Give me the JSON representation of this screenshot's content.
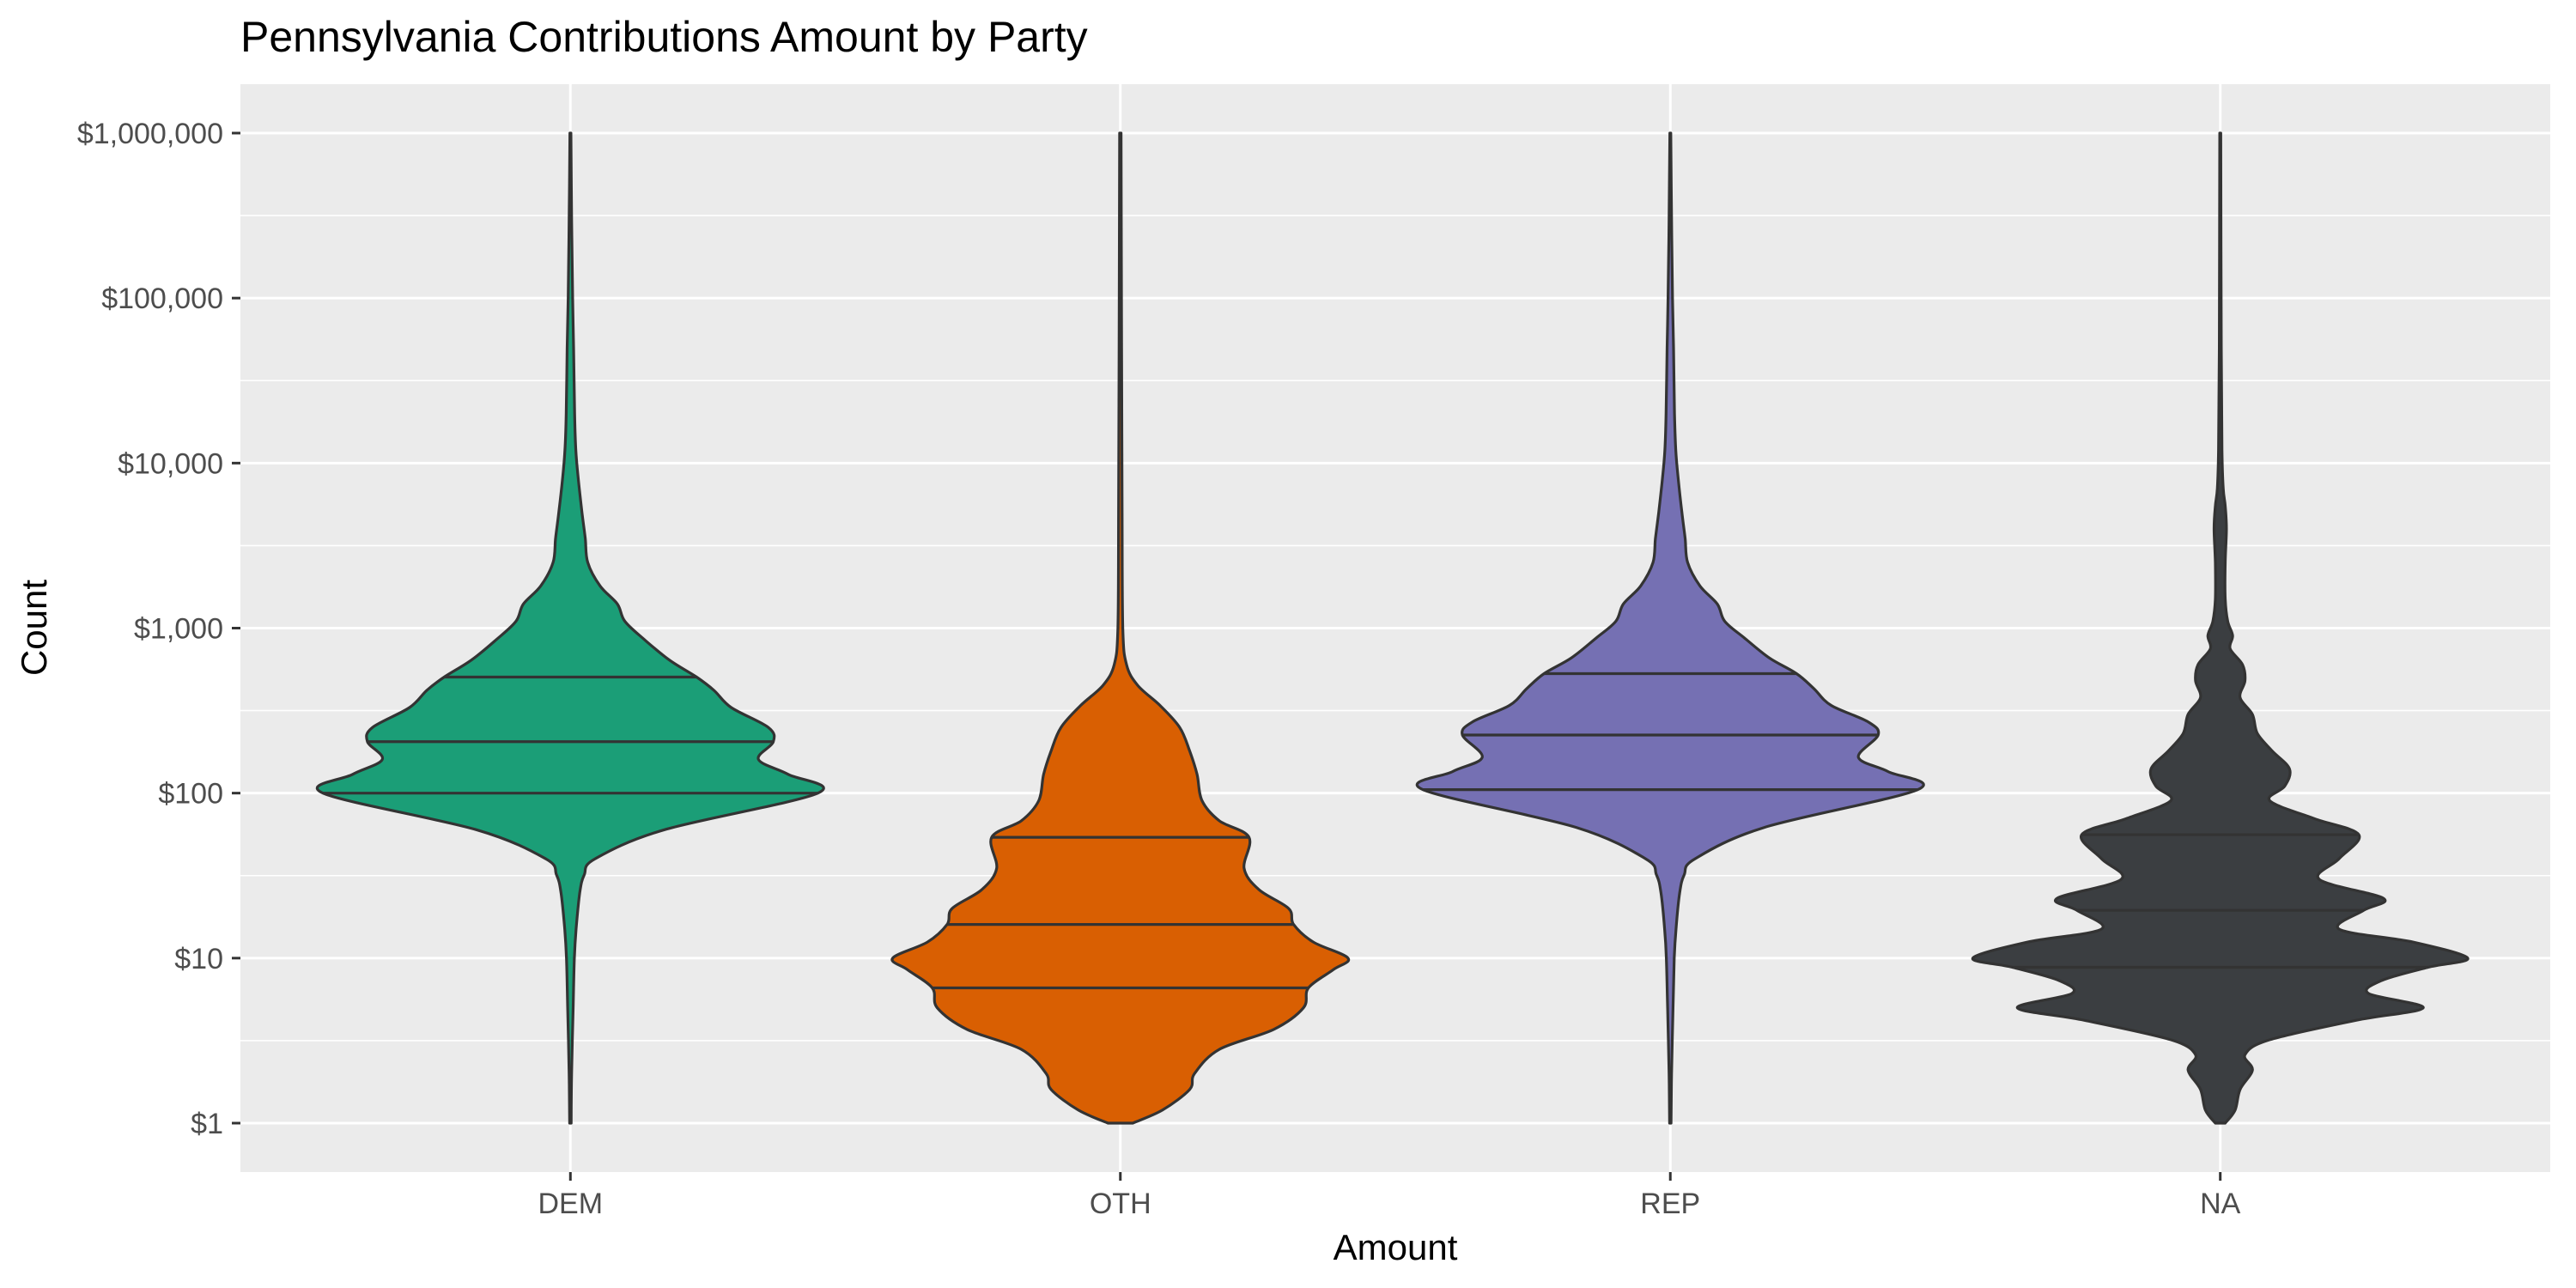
{
  "chart_data": {
    "type": "violin",
    "title": "Pennsylvania Contributions Amount by Party",
    "xlabel": "Amount",
    "ylabel": "Count",
    "y_scale": "log10",
    "ylim": [
      1,
      1000000
    ],
    "y_ticks": [
      1,
      10,
      100,
      1000,
      10000,
      100000,
      1000000
    ],
    "y_tick_labels": [
      "$1",
      "$10",
      "$100",
      "$1,000",
      "$10,000",
      "$100,000",
      "$1,000,000"
    ],
    "categories": [
      "DEM",
      "OTH",
      "REP",
      "NA"
    ],
    "grid": true,
    "legend": "none",
    "series": [
      {
        "category": "DEM",
        "color": "#1b9e77",
        "min": 1,
        "max": 1000000,
        "quantiles": [
          100,
          205,
          505
        ],
        "density": [
          [
            1,
            0.003
          ],
          [
            2,
            0.005
          ],
          [
            5,
            0.011
          ],
          [
            10,
            0.016
          ],
          [
            15,
            0.023
          ],
          [
            25,
            0.038
          ],
          [
            32,
            0.056
          ],
          [
            40,
            0.1
          ],
          [
            60,
            0.38
          ],
          [
            100,
            1.0
          ],
          [
            130,
            0.88
          ],
          [
            160,
            0.76
          ],
          [
            205,
            0.82
          ],
          [
            250,
            0.8
          ],
          [
            330,
            0.65
          ],
          [
            420,
            0.58
          ],
          [
            505,
            0.51
          ],
          [
            640,
            0.4
          ],
          [
            850,
            0.3
          ],
          [
            1100,
            0.22
          ],
          [
            1400,
            0.19
          ],
          [
            1800,
            0.12
          ],
          [
            2500,
            0.07
          ],
          [
            3500,
            0.06
          ],
          [
            5000,
            0.047
          ],
          [
            8000,
            0.032
          ],
          [
            12000,
            0.022
          ],
          [
            20000,
            0.017
          ],
          [
            50000,
            0.013
          ],
          [
            100000,
            0.009
          ],
          [
            300000,
            0.005
          ],
          [
            1000000,
            0.002
          ]
        ]
      },
      {
        "category": "OTH",
        "color": "#d95f02",
        "min": 1,
        "max": 1000000,
        "quantiles": [
          6.6,
          16,
          54
        ],
        "density": [
          [
            1,
            0.05
          ],
          [
            1.2,
            0.17
          ],
          [
            1.6,
            0.28
          ],
          [
            2.0,
            0.3
          ],
          [
            2.8,
            0.4
          ],
          [
            3.7,
            0.62
          ],
          [
            5,
            0.74
          ],
          [
            6.6,
            0.76
          ],
          [
            8.5,
            0.86
          ],
          [
            10,
            0.92
          ],
          [
            12.5,
            0.78
          ],
          [
            16,
            0.7
          ],
          [
            20,
            0.68
          ],
          [
            26,
            0.56
          ],
          [
            35,
            0.5
          ],
          [
            54,
            0.52
          ],
          [
            68,
            0.4
          ],
          [
            90,
            0.33
          ],
          [
            130,
            0.31
          ],
          [
            180,
            0.28
          ],
          [
            250,
            0.24
          ],
          [
            340,
            0.16
          ],
          [
            450,
            0.07
          ],
          [
            600,
            0.025
          ],
          [
            1000,
            0.01
          ],
          [
            5000,
            0.007
          ],
          [
            50000,
            0.005
          ],
          [
            1000000,
            0.003
          ]
        ]
      },
      {
        "category": "REP",
        "color": "#7570b3",
        "min": 1,
        "max": 1000000,
        "quantiles": [
          105,
          225,
          530
        ],
        "density": [
          [
            1,
            0.003
          ],
          [
            2,
            0.005
          ],
          [
            5,
            0.011
          ],
          [
            10,
            0.016
          ],
          [
            15,
            0.023
          ],
          [
            25,
            0.038
          ],
          [
            32,
            0.056
          ],
          [
            40,
            0.1
          ],
          [
            62,
            0.38
          ],
          [
            105,
            1.0
          ],
          [
            135,
            0.88
          ],
          [
            165,
            0.76
          ],
          [
            225,
            0.84
          ],
          [
            270,
            0.8
          ],
          [
            340,
            0.65
          ],
          [
            430,
            0.58
          ],
          [
            530,
            0.51
          ],
          [
            660,
            0.4
          ],
          [
            870,
            0.3
          ],
          [
            1100,
            0.22
          ],
          [
            1400,
            0.19
          ],
          [
            1800,
            0.12
          ],
          [
            2500,
            0.07
          ],
          [
            3500,
            0.06
          ],
          [
            5000,
            0.047
          ],
          [
            8000,
            0.032
          ],
          [
            12000,
            0.022
          ],
          [
            20000,
            0.017
          ],
          [
            50000,
            0.013
          ],
          [
            100000,
            0.009
          ],
          [
            300000,
            0.005
          ],
          [
            1000000,
            0.002
          ]
        ]
      },
      {
        "category": "NA",
        "color": "#3b3e41",
        "min": 1,
        "max": 1000000,
        "quantiles": [
          8.8,
          19.5,
          56
        ],
        "density": [
          [
            1,
            0.02
          ],
          [
            1.2,
            0.06
          ],
          [
            1.6,
            0.08
          ],
          [
            2.1,
            0.13
          ],
          [
            2.6,
            0.1
          ],
          [
            3.2,
            0.2
          ],
          [
            4.2,
            0.55
          ],
          [
            5,
            0.82
          ],
          [
            6.1,
            0.6
          ],
          [
            7.3,
            0.65
          ],
          [
            8.8,
            0.84
          ],
          [
            10,
            1.0
          ],
          [
            12.5,
            0.78
          ],
          [
            15,
            0.48
          ],
          [
            19.5,
            0.58
          ],
          [
            23,
            0.66
          ],
          [
            30,
            0.4
          ],
          [
            40,
            0.48
          ],
          [
            56,
            0.56
          ],
          [
            70,
            0.38
          ],
          [
            90,
            0.2
          ],
          [
            110,
            0.26
          ],
          [
            140,
            0.28
          ],
          [
            180,
            0.21
          ],
          [
            230,
            0.15
          ],
          [
            300,
            0.13
          ],
          [
            380,
            0.08
          ],
          [
            480,
            0.1
          ],
          [
            600,
            0.09
          ],
          [
            750,
            0.04
          ],
          [
            900,
            0.05
          ],
          [
            1100,
            0.03
          ],
          [
            1500,
            0.02
          ],
          [
            2500,
            0.02
          ],
          [
            4000,
            0.025
          ],
          [
            5500,
            0.02
          ],
          [
            7000,
            0.012
          ],
          [
            12000,
            0.007
          ],
          [
            50000,
            0.004
          ],
          [
            1000000,
            0.002
          ]
        ]
      }
    ]
  }
}
